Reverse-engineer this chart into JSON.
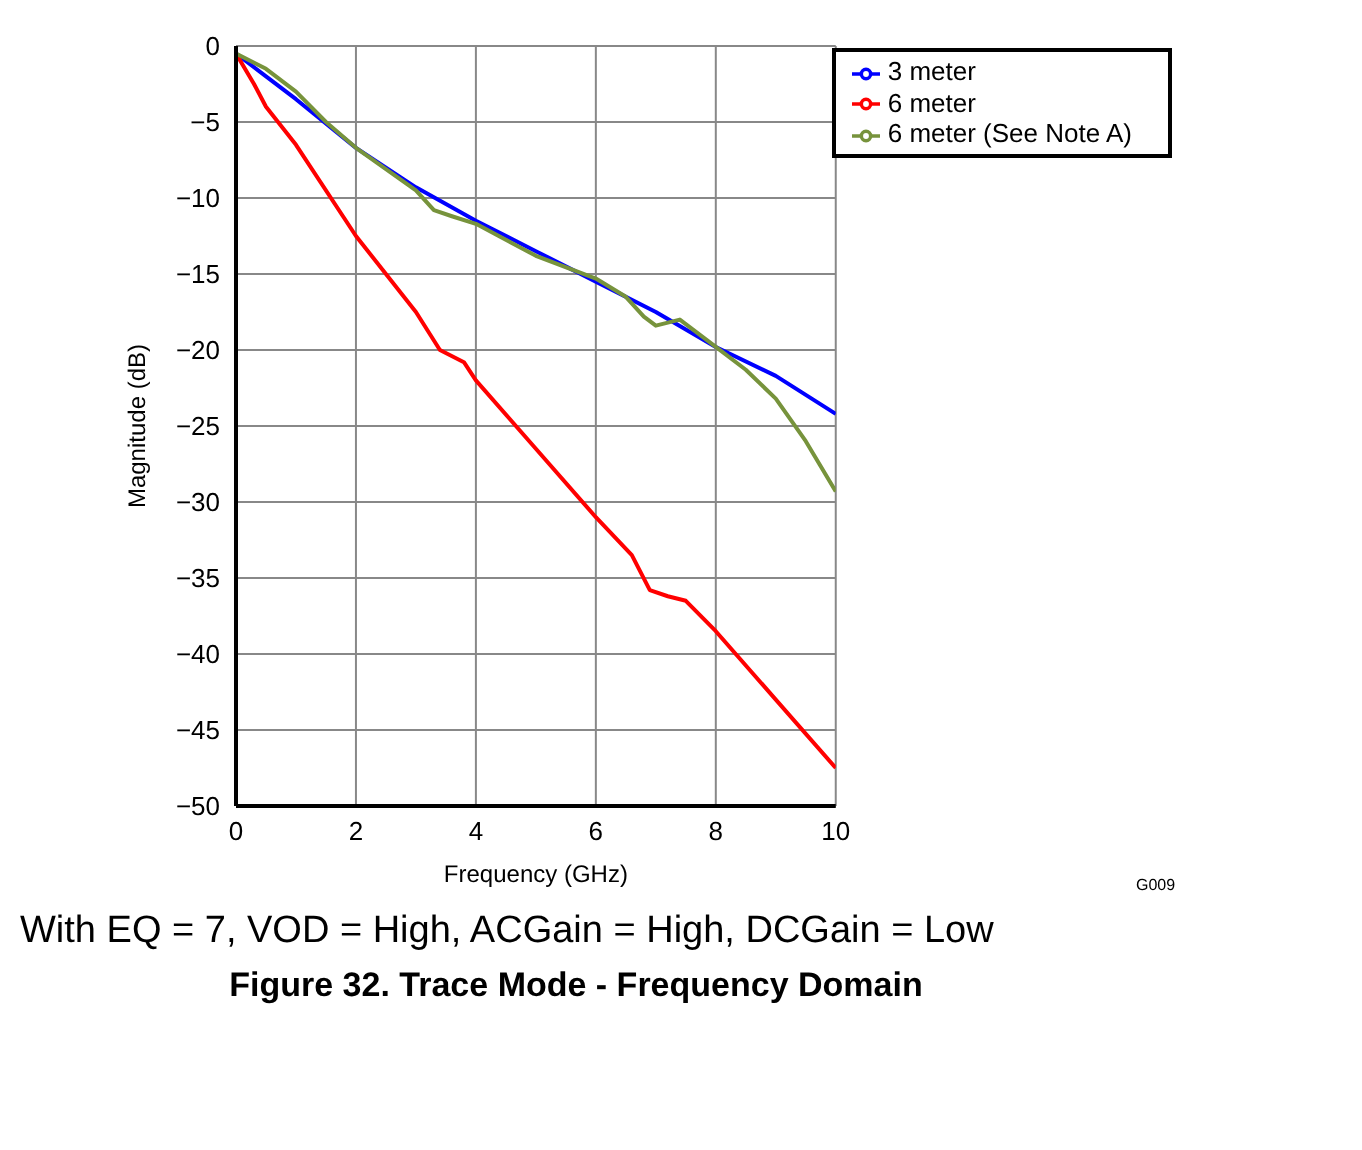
{
  "chart_data": {
    "type": "line",
    "title": "Figure 32. Trace Mode - Frequency Domain",
    "xlabel": "Frequency (GHz)",
    "ylabel": "Magnitude (dB)",
    "annotations": [
      "G009",
      "With EQ = 7, VOD = High, ACGain = High, DCGain = Low"
    ],
    "xlim": [
      0,
      10
    ],
    "xticks": [
      0,
      2,
      4,
      6,
      8,
      10
    ],
    "ylim": [
      -50,
      0
    ],
    "yticks": [
      0,
      -5,
      -10,
      -15,
      -20,
      -25,
      -30,
      -35,
      -40,
      -45,
      -50
    ],
    "grid": true,
    "legend": "top right",
    "marker": "none",
    "line_style": "solid",
    "series": [
      {
        "name": "3 meter",
        "color": "#0000ff",
        "x": [
          0,
          0.5,
          1,
          2,
          3,
          4,
          5,
          6,
          7,
          8,
          9,
          10
        ],
        "values": [
          -0.5,
          -2,
          -3.5,
          -6.7,
          -9.3,
          -11.5,
          -13.5,
          -15.5,
          -17.5,
          -19.8,
          -21.7,
          -24.2
        ]
      },
      {
        "name": "6 meter",
        "color": "#ff0000",
        "x": [
          0,
          0.3,
          0.5,
          1,
          2,
          3,
          3.4,
          3.8,
          4,
          5,
          6,
          6.6,
          6.9,
          7.2,
          7.5,
          8,
          9,
          10
        ],
        "values": [
          -0.5,
          -2.5,
          -4,
          -6.5,
          -12.5,
          -17.5,
          -20,
          -20.8,
          -22,
          -26.5,
          -31,
          -33.5,
          -35.8,
          -36.2,
          -36.5,
          -38.5,
          -43,
          -47.5
        ]
      },
      {
        "name": "6 meter (See Note A)",
        "color": "#77933c",
        "x": [
          0,
          0.5,
          1,
          1.5,
          2,
          3,
          3.3,
          3.6,
          4,
          5,
          6,
          6.5,
          6.8,
          7,
          7.4,
          8,
          8.5,
          9,
          9.5,
          10
        ],
        "values": [
          -0.5,
          -1.5,
          -3,
          -5,
          -6.7,
          -9.5,
          -10.8,
          -11.2,
          -11.7,
          -13.8,
          -15.3,
          -16.5,
          -17.8,
          -18.4,
          -18,
          -19.8,
          -21.3,
          -23.2,
          -26,
          -29.3
        ]
      }
    ]
  }
}
